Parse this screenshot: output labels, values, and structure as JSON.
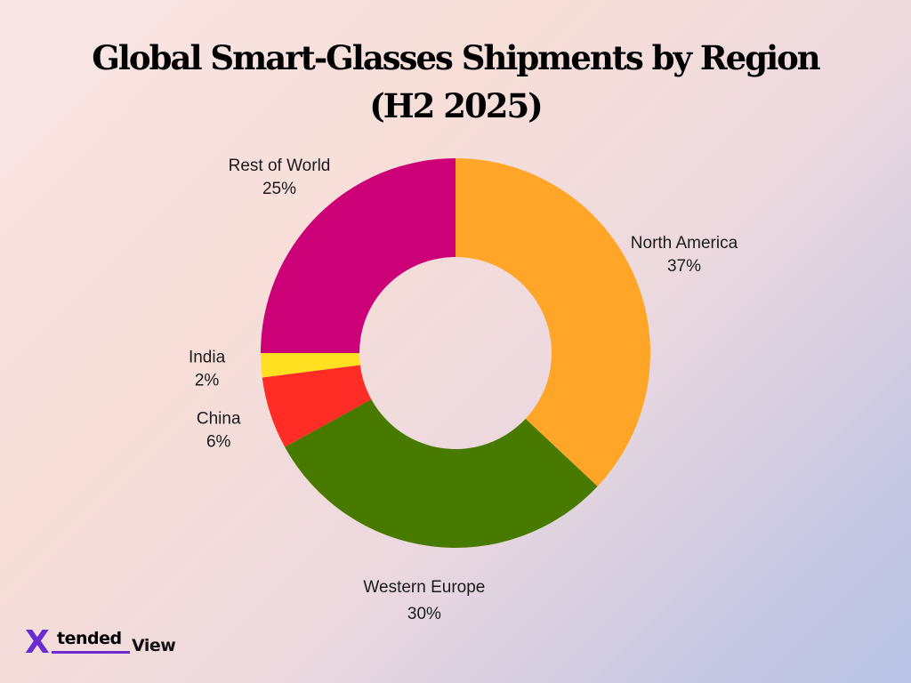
{
  "chart_data": {
    "type": "pie",
    "donut": true,
    "title_line1": "Global Smart-Glasses Shipments by Region",
    "title_line2": "(H2 2025)",
    "slices": [
      {
        "name": "North America",
        "value": 37,
        "label": "37%",
        "color": "#ffa628"
      },
      {
        "name": "Western Europe",
        "value": 30,
        "label": "30%",
        "color": "#487a00"
      },
      {
        "name": "China",
        "value": 6,
        "label": "6%",
        "color": "#ff2d26"
      },
      {
        "name": "India",
        "value": 2,
        "label": "2%",
        "color": "#ffe121"
      },
      {
        "name": "Rest of World",
        "value": 25,
        "label": "25%",
        "color": "#cc0077"
      }
    ],
    "start_direction": "top",
    "order": "clockwise"
  },
  "logo": {
    "mark": "X",
    "part1": "tended",
    "part2": "View",
    "color": "#6a2bd1"
  }
}
